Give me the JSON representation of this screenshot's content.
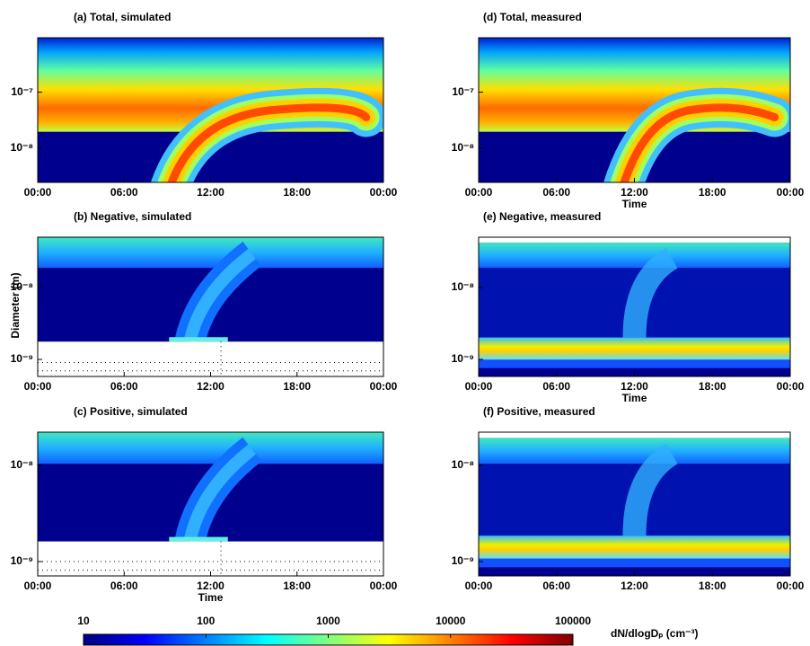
{
  "chart_data": [
    {
      "type": "heatmap",
      "title": "(a) Total, simulated",
      "xlim": [
        0,
        24
      ],
      "xticks": [
        {
          "value": 0,
          "label": "00:00"
        },
        {
          "value": 6,
          "label": "06:00"
        },
        {
          "value": 12,
          "label": "12:00"
        },
        {
          "value": 18,
          "label": "18:00"
        },
        {
          "value": 24,
          "label": "00:00"
        }
      ],
      "ylim": [
        2.4e-09,
        9.5e-07
      ],
      "yticks": [
        {
          "value": 1e-07,
          "label": "10⁻⁷"
        },
        {
          "value": 1e-08,
          "label": "10⁻⁸"
        }
      ],
      "log_y": true
    },
    {
      "type": "heatmap",
      "title": "(b) Negative, simulated",
      "ylabel": "Diameter (m)",
      "xlim": [
        0,
        24
      ],
      "xticks": [
        {
          "value": 0,
          "label": "00:00"
        },
        {
          "value": 6,
          "label": "06:00"
        },
        {
          "value": 12,
          "label": "12:00"
        },
        {
          "value": 18,
          "label": "18:00"
        },
        {
          "value": 24,
          "label": "00:00"
        }
      ],
      "ylim": [
        5.8e-10,
        5e-08
      ],
      "yticks": [
        {
          "value": 1e-08,
          "label": "10⁻⁸"
        },
        {
          "value": 1e-09,
          "label": "10⁻⁹"
        }
      ],
      "log_y": true
    },
    {
      "type": "heatmap",
      "title": "(c) Positive, simulated",
      "xlabel": "Time",
      "xlim": [
        0,
        24
      ],
      "xticks": [
        {
          "value": 0,
          "label": "00:00"
        },
        {
          "value": 6,
          "label": "06:00"
        },
        {
          "value": 12,
          "label": "12:00"
        },
        {
          "value": 18,
          "label": "18:00"
        },
        {
          "value": 24,
          "label": "00:00"
        }
      ],
      "ylim": [
        7.1e-10,
        2.2e-08
      ],
      "yticks": [
        {
          "value": 1e-08,
          "label": "10⁻⁸"
        },
        {
          "value": 1e-09,
          "label": "10⁻⁹"
        }
      ],
      "log_y": true
    },
    {
      "type": "heatmap",
      "title": "(d) Total, measured",
      "xlabel": "Time",
      "xlim": [
        0,
        24
      ],
      "xticks": [
        {
          "value": 0,
          "label": "00:00"
        },
        {
          "value": 6,
          "label": "06:00"
        },
        {
          "value": 12,
          "label": "12:00"
        },
        {
          "value": 18,
          "label": "18:00"
        },
        {
          "value": 24,
          "label": "00:00"
        }
      ],
      "ylim": [
        2.4e-09,
        9.5e-07
      ],
      "yticks": [
        {
          "value": 1e-07,
          "label": "10⁻⁷"
        },
        {
          "value": 1e-08,
          "label": "10⁻⁸"
        }
      ],
      "log_y": true
    },
    {
      "type": "heatmap",
      "title": "(e) Negative, measured",
      "xlabel": "Time",
      "xlim": [
        0,
        24
      ],
      "xticks": [
        {
          "value": 0,
          "label": "00:00"
        },
        {
          "value": 6,
          "label": "06:00"
        },
        {
          "value": 12,
          "label": "12:00"
        },
        {
          "value": 18,
          "label": "18:00"
        },
        {
          "value": 24,
          "label": "00:00"
        }
      ],
      "ylim": [
        5.8e-10,
        5e-08
      ],
      "yticks": [
        {
          "value": 1e-08,
          "label": "10⁻⁸"
        },
        {
          "value": 1e-09,
          "label": "10⁻⁹"
        }
      ],
      "log_y": true
    },
    {
      "type": "heatmap",
      "title": "(f) Positive, measured",
      "xlim": [
        0,
        24
      ],
      "xticks": [
        {
          "value": 0,
          "label": "00:00"
        },
        {
          "value": 6,
          "label": "06:00"
        },
        {
          "value": 12,
          "label": "12:00"
        },
        {
          "value": 18,
          "label": "18:00"
        },
        {
          "value": 24,
          "label": "00:00"
        }
      ],
      "ylim": [
        7.1e-10,
        2.2e-08
      ],
      "yticks": [
        {
          "value": 1e-08,
          "label": "10⁻⁸"
        },
        {
          "value": 1e-09,
          "label": "10⁻⁹"
        }
      ],
      "log_y": true
    }
  ],
  "colorbar": {
    "label": "dN/dlogDₚ (cm⁻³)",
    "lim": [
      10,
      100000
    ],
    "ticks": [
      10,
      100,
      1000,
      10000,
      100000
    ],
    "log": true
  }
}
